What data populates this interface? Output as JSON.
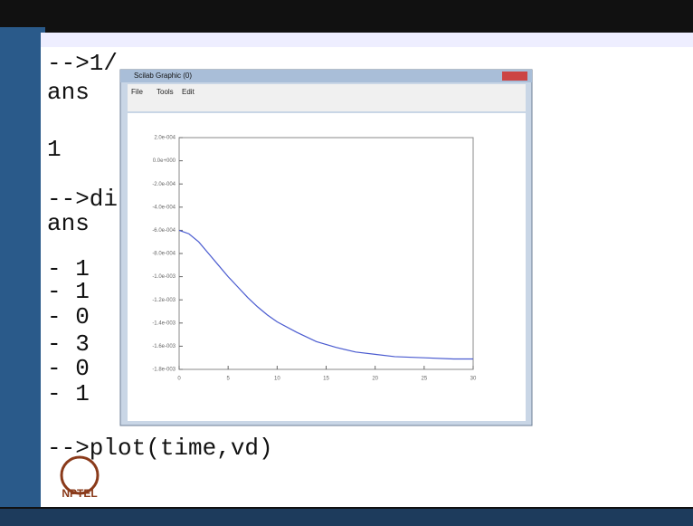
{
  "console": {
    "lines": [
      "-->1/",
      " ans",
      "    1",
      "-->di",
      " ans",
      "  - 1",
      "  - 1",
      "  - 0",
      "  - 3",
      "  - 0",
      "  - 1",
      "-->plot(time,vd)"
    ]
  },
  "window": {
    "title": "Scilab Graphic (0)",
    "menus": [
      "File",
      "Tools",
      "Edit"
    ]
  },
  "logo": "NPTEL",
  "chart_data": {
    "type": "line",
    "x": [
      0,
      1,
      2,
      3,
      4,
      5,
      6,
      7,
      8,
      9,
      10,
      12,
      14,
      16,
      18,
      20,
      22,
      25,
      28,
      30
    ],
    "values": [
      -0.0006,
      -0.00063,
      -0.0007,
      -0.0008,
      -0.0009,
      -0.001,
      -0.00109,
      -0.00118,
      -0.00126,
      -0.00133,
      -0.00139,
      -0.00148,
      -0.00156,
      -0.00161,
      -0.00165,
      -0.00167,
      -0.00169,
      -0.0017,
      -0.00171,
      -0.00171
    ],
    "color": "#4a5bd0",
    "xlim": [
      0,
      30
    ],
    "xticks": [
      0,
      5,
      10,
      15,
      20,
      25,
      30
    ],
    "ylim": [
      -0.0018,
      0.0002
    ],
    "yticks": [
      {
        "value": 0.0002,
        "label": "2.0e-004"
      },
      {
        "value": 0,
        "label": "0.0e+000"
      },
      {
        "value": -0.0002,
        "label": "-2.0e-004"
      },
      {
        "value": -0.0004,
        "label": "-4.0e-004"
      },
      {
        "value": -0.0006,
        "label": "-6.0e-004"
      },
      {
        "value": -0.0008,
        "label": "-8.0e-004"
      },
      {
        "value": -0.001,
        "label": "-1.0e-003"
      },
      {
        "value": -0.0012,
        "label": "-1.2e-003"
      },
      {
        "value": -0.0014,
        "label": "-1.4e-003"
      },
      {
        "value": -0.0016,
        "label": "-1.6e-003"
      },
      {
        "value": -0.0018,
        "label": "-1.8e-003"
      }
    ]
  }
}
